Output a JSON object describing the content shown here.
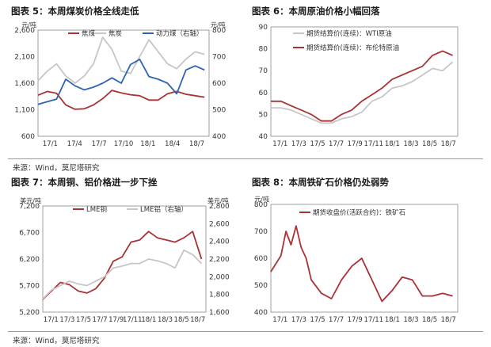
{
  "sources": {
    "top": "来源：Wind，莫尼塔研究",
    "bottom": "来源：Wind，莫尼塔研究"
  },
  "colors": {
    "maroon": "#a83236",
    "grey": "#c6c6c6",
    "blue": "#2e63b3",
    "axis": "#777777"
  },
  "chart_data": [
    {
      "id": "fig5",
      "type": "line",
      "title": "图表 5：本周煤炭价格全线走低",
      "unit_left": "元/吨",
      "unit_right": "元/吨",
      "ylim": [
        400,
        2600
      ],
      "ylim_right": [
        400,
        800
      ],
      "yticks": [
        "2,600",
        "2,100",
        "1,600",
        "1,100",
        "600"
      ],
      "yticks_right": [
        "800",
        "700",
        "600",
        "500",
        "400"
      ],
      "xticks": [
        "17/1",
        "17/4",
        "17/7",
        "17/10",
        "18/1",
        "18/4",
        "18/7"
      ],
      "x_range": [
        0,
        18.5
      ],
      "legend": [
        "焦煤",
        "焦炭",
        "动力煤（右轴）"
      ],
      "series": [
        {
          "name": "焦煤",
          "color": "maroon",
          "axis": "left",
          "x": [
            0,
            1,
            2,
            3,
            4,
            5,
            6,
            7,
            8,
            9,
            10,
            11,
            12,
            13,
            14,
            15,
            16,
            17,
            18
          ],
          "y": [
            1250,
            1330,
            1290,
            1050,
            960,
            970,
            1050,
            1180,
            1350,
            1300,
            1260,
            1240,
            1150,
            1150,
            1280,
            1330,
            1270,
            1240,
            1210
          ]
        },
        {
          "name": "焦炭",
          "color": "grey",
          "axis": "left",
          "x": [
            0,
            1,
            2,
            3,
            4,
            5,
            6,
            7,
            8,
            9,
            10,
            11,
            12,
            13,
            14,
            15,
            16,
            17,
            18
          ],
          "y": [
            1550,
            1750,
            1900,
            1650,
            1500,
            1650,
            1900,
            2450,
            2200,
            1750,
            1700,
            2050,
            2400,
            2150,
            1900,
            1800,
            2000,
            2150,
            2100
          ]
        },
        {
          "name": "动力煤（右轴）",
          "color": "blue",
          "axis": "right",
          "x": [
            0,
            1,
            2,
            3,
            4,
            5,
            6,
            7,
            8,
            9,
            10,
            11,
            12,
            13,
            14,
            15,
            16,
            17,
            18
          ],
          "y": [
            520,
            530,
            540,
            615,
            590,
            575,
            585,
            600,
            620,
            600,
            670,
            690,
            625,
            615,
            600,
            560,
            650,
            665,
            650
          ]
        }
      ]
    },
    {
      "id": "fig6",
      "type": "line",
      "title": "图表 6：本周原油价格小幅回落",
      "ylim": [
        40,
        90
      ],
      "yticks": [
        "90",
        "80",
        "70",
        "60",
        "50",
        "40"
      ],
      "xticks": [
        "17/1",
        "17/3",
        "17/5",
        "17/7",
        "17/9",
        "17/11",
        "18/1",
        "18/3",
        "18/5",
        "18/7"
      ],
      "x_range": [
        0,
        18.5
      ],
      "legend": [
        "期货结算价(连续)：WTI原油",
        "期货结算价(连续)：布伦特原油"
      ],
      "series": [
        {
          "name": "期货结算价(连续)：WTI原油",
          "color": "grey",
          "x": [
            0,
            1,
            2,
            3,
            4,
            5,
            6,
            7,
            8,
            9,
            10,
            11,
            12,
            13,
            14,
            15,
            16,
            17,
            18
          ],
          "y": [
            53,
            53,
            52,
            50,
            48,
            46,
            46,
            48,
            49,
            51,
            56,
            58,
            62,
            63,
            65,
            68,
            71,
            70,
            74
          ]
        },
        {
          "name": "期货结算价(连续)：布伦特原油",
          "color": "maroon",
          "x": [
            0,
            1,
            2,
            3,
            4,
            5,
            6,
            7,
            8,
            9,
            10,
            11,
            12,
            13,
            14,
            15,
            16,
            17,
            18
          ],
          "y": [
            56,
            56,
            54,
            52,
            50,
            47,
            47,
            50,
            52,
            56,
            59,
            62,
            66,
            68,
            70,
            72,
            77,
            79,
            77
          ]
        }
      ]
    },
    {
      "id": "fig7",
      "type": "line",
      "title": "图表 7：本周铜、铝价格进一步下挫",
      "unit_left": "美元/吨",
      "unit_right": "美元/吨",
      "ylim": [
        5200,
        7700
      ],
      "ylim_right": [
        1600,
        2800
      ],
      "yticks": [
        "7,200",
        "6,700",
        "6,200",
        "5,700",
        "5,200"
      ],
      "yticks_right": [
        "2,800",
        "2,600",
        "2,400",
        "2,200",
        "2,000",
        "1,800",
        "1,600"
      ],
      "xticks": [
        "17/1",
        "17/3",
        "17/5",
        "17/7",
        "17/9",
        "17/11",
        "18/1",
        "18/3",
        "18/5",
        "18/7"
      ],
      "x_range": [
        0,
        18.5
      ],
      "legend": [
        "LME铜",
        "LME铝（右轴）"
      ],
      "series": [
        {
          "name": "LME铜",
          "color": "maroon",
          "axis": "left",
          "x": [
            0,
            1,
            2,
            3,
            4,
            5,
            6,
            7,
            8,
            9,
            10,
            11,
            12,
            13,
            14,
            15,
            16,
            17,
            18
          ],
          "y": [
            5500,
            5700,
            5900,
            5850,
            5700,
            5650,
            5750,
            6000,
            6400,
            6500,
            6850,
            6900,
            7100,
            6950,
            6900,
            6850,
            6950,
            7100,
            6450
          ]
        },
        {
          "name": "LME铝（右轴）",
          "color": "grey",
          "axis": "right",
          "x": [
            0,
            1,
            2,
            3,
            4,
            5,
            6,
            7,
            8,
            9,
            10,
            11,
            12,
            13,
            14,
            15,
            16,
            17,
            18
          ],
          "y": [
            1750,
            1850,
            1900,
            1950,
            1920,
            1900,
            1950,
            2000,
            2100,
            2120,
            2150,
            2150,
            2200,
            2180,
            2150,
            2100,
            2300,
            2250,
            2150
          ]
        }
      ]
    },
    {
      "id": "fig8",
      "type": "line",
      "title": "图表 8：本周铁矿石价格仍处弱势",
      "unit_left": "元/吨",
      "ylim": [
        400,
        800
      ],
      "yticks": [
        "800",
        "700",
        "600",
        "500",
        "400"
      ],
      "xticks": [
        "17/1",
        "17/3",
        "17/5",
        "17/7",
        "17/9",
        "17/11",
        "18/1",
        "18/3",
        "18/5",
        "18/7"
      ],
      "x_range": [
        0,
        18.5
      ],
      "legend": [
        "期货收盘价(活跃合约)：铁矿石"
      ],
      "series": [
        {
          "name": "期货收盘价(活跃合约)：铁矿石",
          "color": "maroon",
          "x": [
            0,
            1,
            1.5,
            2,
            2.5,
            3,
            3.5,
            4,
            5,
            6,
            7,
            8,
            9,
            10,
            11,
            12,
            13,
            14,
            15,
            16,
            17,
            18
          ],
          "y": [
            550,
            610,
            700,
            650,
            720,
            640,
            600,
            520,
            470,
            450,
            520,
            570,
            600,
            520,
            440,
            480,
            530,
            520,
            460,
            460,
            470,
            460
          ]
        }
      ]
    }
  ]
}
